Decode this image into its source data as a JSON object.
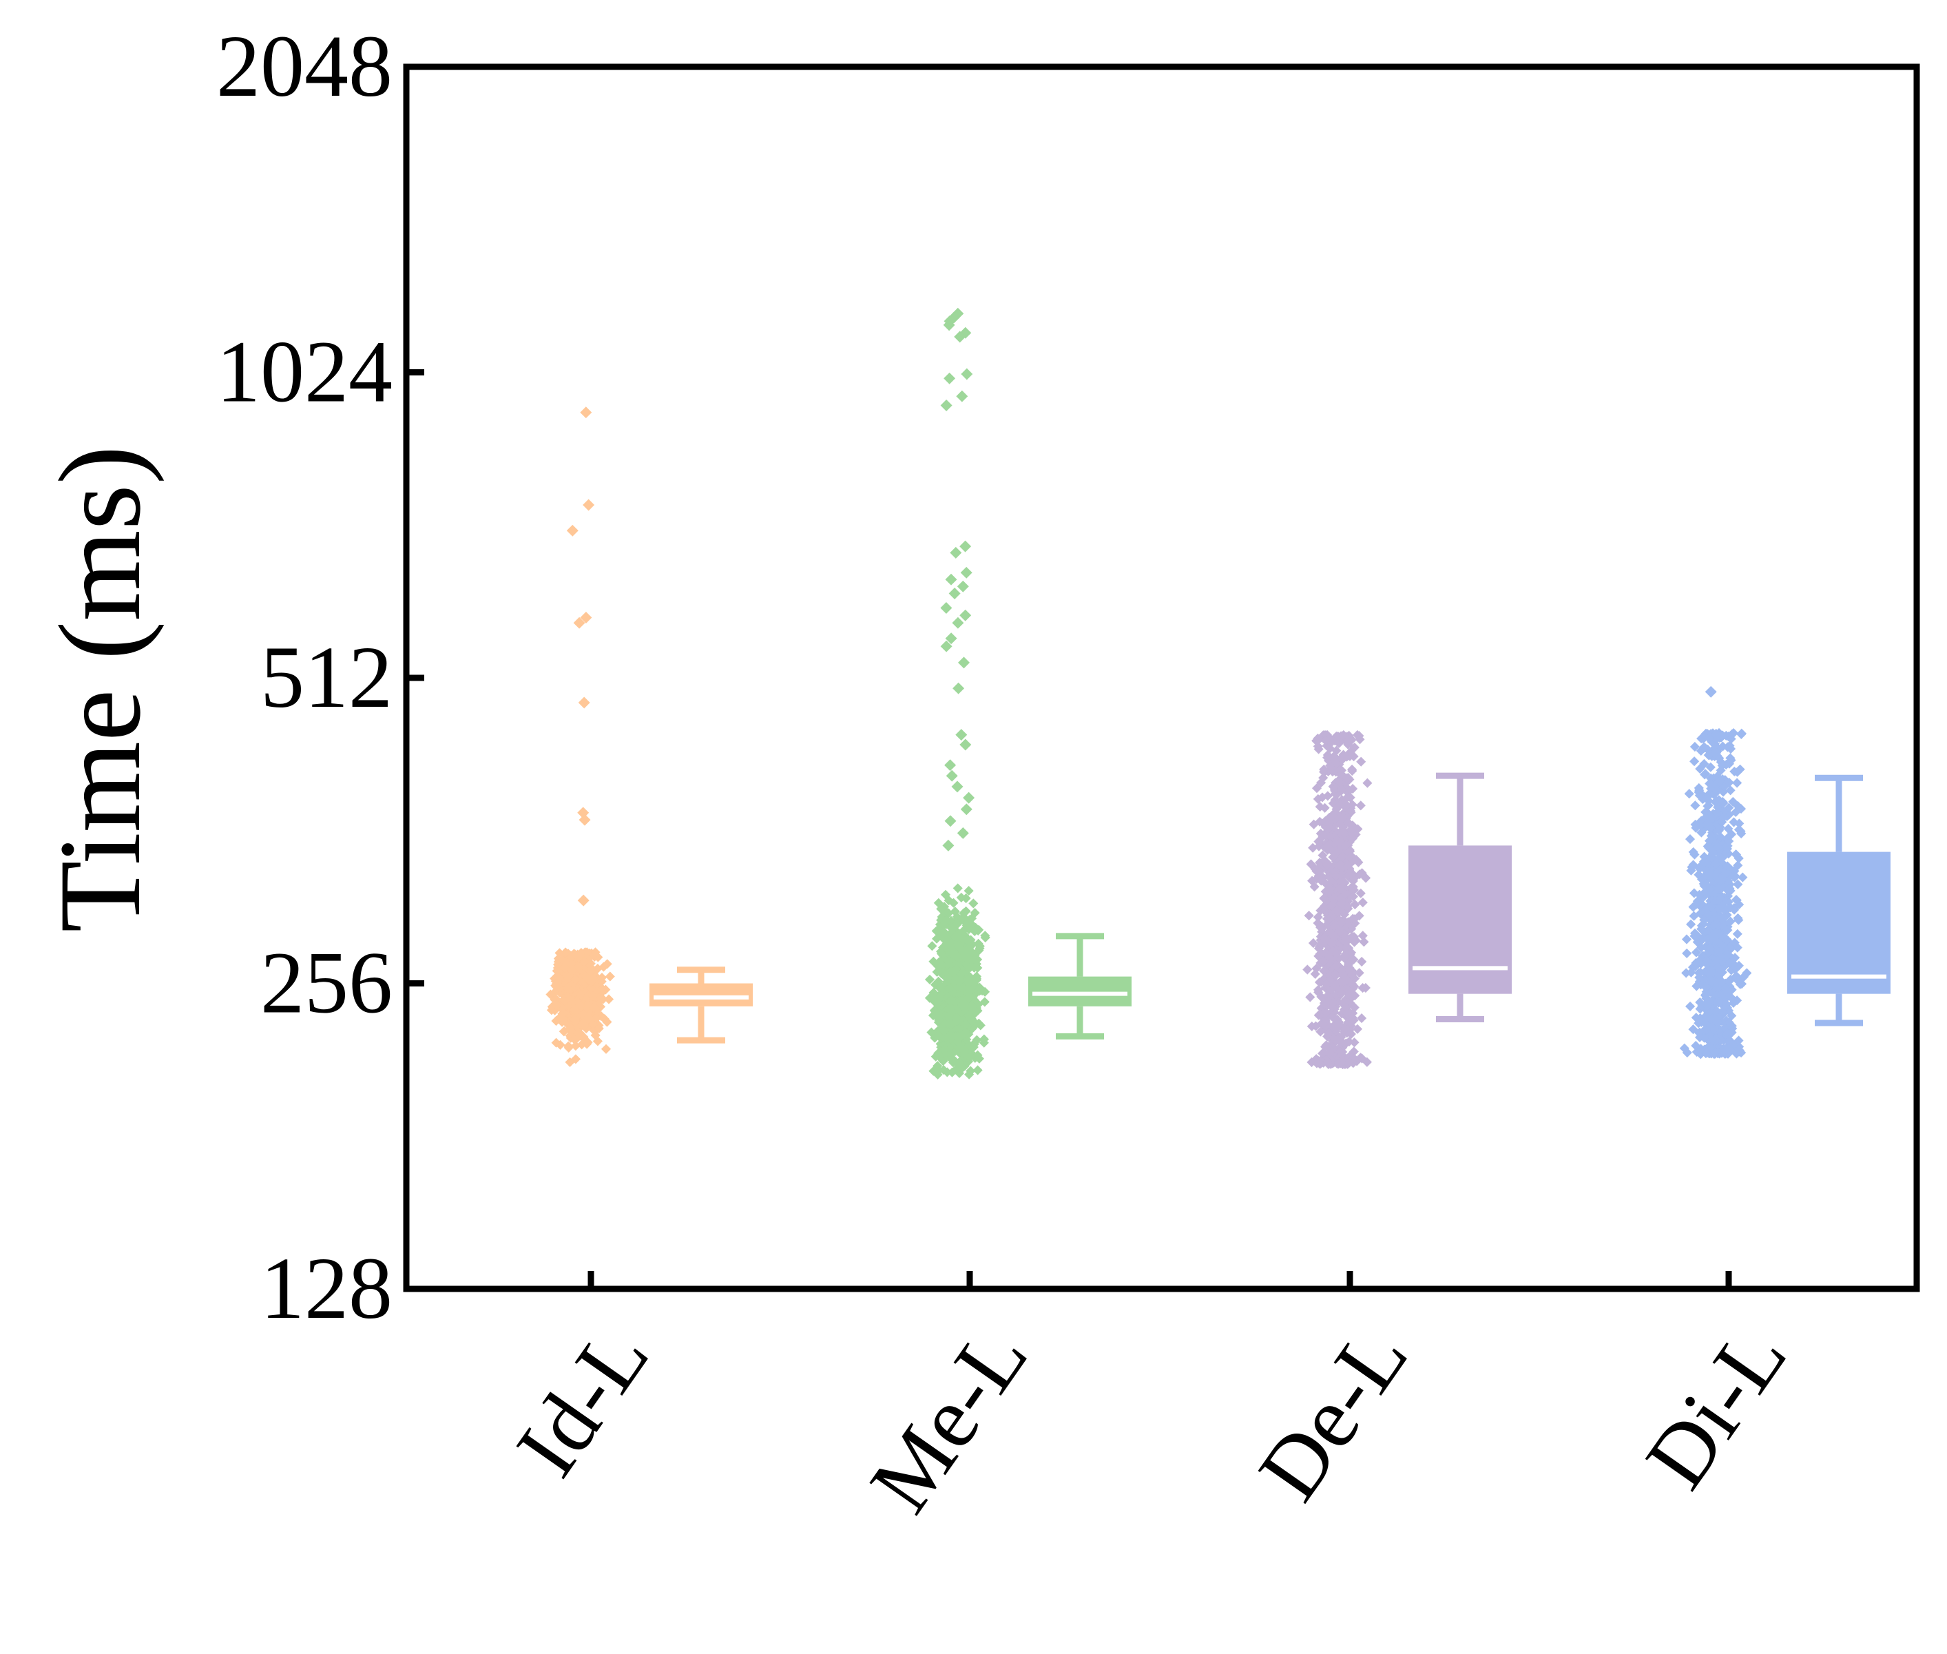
{
  "chart_data": {
    "type": "box",
    "ylabel": "Time (ms)",
    "xlabel": "",
    "yscale": "log2",
    "ylim": [
      128,
      2048
    ],
    "yticks": [
      128,
      256,
      512,
      1024,
      2048
    ],
    "ytick_labels": [
      "128",
      "256",
      "512",
      "1024",
      "2048"
    ],
    "categories": [
      "Id-L",
      "Me-L",
      "De-L",
      "Di-L"
    ],
    "grid": false,
    "legend": "none",
    "series": [
      {
        "name": "Id-L",
        "color": "#FFC797",
        "box": {
          "whisker_low": 225,
          "q1": 243,
          "median": 248,
          "q3": 256,
          "whisker_high": 264
        },
        "points": {
          "bulk_min": 212,
          "bulk_max": 275,
          "outliers": [
            935,
            758,
            715,
            587,
            580,
            484,
            377,
            371,
            309
          ]
        }
      },
      {
        "name": "Me-L",
        "color": "#9ED79A",
        "box": {
          "whisker_low": 227,
          "q1": 243,
          "median": 250,
          "q3": 260,
          "whisker_high": 285
        },
        "points": {
          "bulk_min": 208,
          "bulk_max": 335,
          "outliers": [
            1170,
            1160,
            1150,
            1140,
            1120,
            1110,
            1020,
            1010,
            970,
            950,
            690,
            680,
            650,
            640,
            630,
            620,
            600,
            590,
            580,
            560,
            550,
            530,
            500,
            450,
            440,
            420,
            410,
            400,
            390,
            380,
            370,
            360,
            350
          ]
        }
      },
      {
        "name": "De-L",
        "color": "#C1B1D7",
        "box": {
          "whisker_low": 236,
          "q1": 250,
          "median": 265,
          "q3": 350,
          "whisker_high": 410
        },
        "points": {
          "bulk_min": 213,
          "bulk_max": 450,
          "outliers": []
        }
      },
      {
        "name": "Di-L",
        "color": "#9DB9F0",
        "box": {
          "whisker_low": 234,
          "q1": 250,
          "median": 260,
          "q3": 345,
          "whisker_high": 408
        },
        "points": {
          "bulk_min": 218,
          "bulk_max": 452,
          "outliers": [
            496
          ]
        }
      }
    ]
  }
}
